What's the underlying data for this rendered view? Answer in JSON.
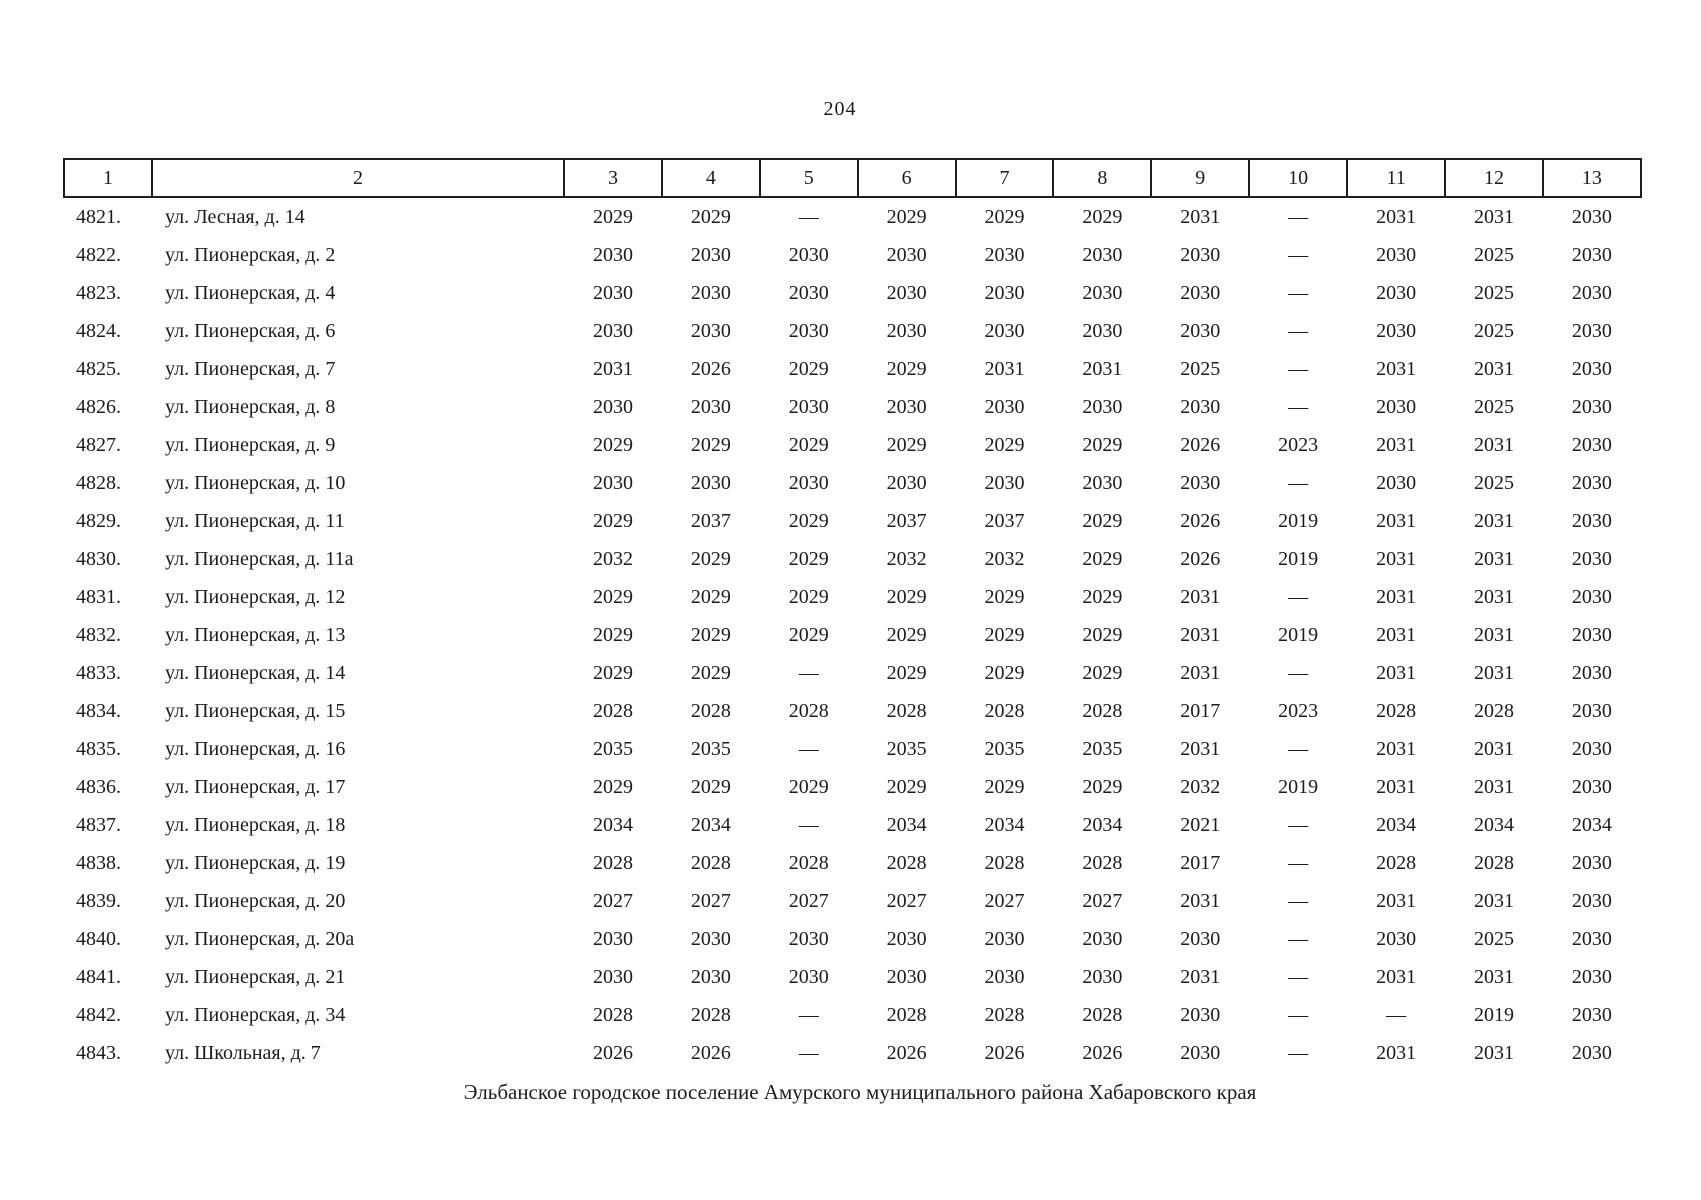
{
  "page": {
    "number": "204",
    "footer": "Эльбанское городское поселение Амурского муниципального района Хабаровского края"
  },
  "table": {
    "header": [
      "1",
      "2",
      "3",
      "4",
      "5",
      "6",
      "7",
      "8",
      "9",
      "10",
      "11",
      "12",
      "13"
    ],
    "rows": [
      {
        "num": "4821.",
        "address": "ул. Лесная, д. 14",
        "values": [
          "2029",
          "2029",
          "—",
          "2029",
          "2029",
          "2029",
          "2031",
          "—",
          "2031",
          "2031",
          "2030"
        ]
      },
      {
        "num": "4822.",
        "address": "ул. Пионерская, д. 2",
        "values": [
          "2030",
          "2030",
          "2030",
          "2030",
          "2030",
          "2030",
          "2030",
          "—",
          "2030",
          "2025",
          "2030"
        ]
      },
      {
        "num": "4823.",
        "address": "ул. Пионерская, д. 4",
        "values": [
          "2030",
          "2030",
          "2030",
          "2030",
          "2030",
          "2030",
          "2030",
          "—",
          "2030",
          "2025",
          "2030"
        ]
      },
      {
        "num": "4824.",
        "address": "ул. Пионерская, д. 6",
        "values": [
          "2030",
          "2030",
          "2030",
          "2030",
          "2030",
          "2030",
          "2030",
          "—",
          "2030",
          "2025",
          "2030"
        ]
      },
      {
        "num": "4825.",
        "address": "ул. Пионерская, д. 7",
        "values": [
          "2031",
          "2026",
          "2029",
          "2029",
          "2031",
          "2031",
          "2025",
          "—",
          "2031",
          "2031",
          "2030"
        ]
      },
      {
        "num": "4826.",
        "address": "ул. Пионерская, д. 8",
        "values": [
          "2030",
          "2030",
          "2030",
          "2030",
          "2030",
          "2030",
          "2030",
          "—",
          "2030",
          "2025",
          "2030"
        ]
      },
      {
        "num": "4827.",
        "address": "ул. Пионерская, д. 9",
        "values": [
          "2029",
          "2029",
          "2029",
          "2029",
          "2029",
          "2029",
          "2026",
          "2023",
          "2031",
          "2031",
          "2030"
        ]
      },
      {
        "num": "4828.",
        "address": "ул. Пионерская, д. 10",
        "values": [
          "2030",
          "2030",
          "2030",
          "2030",
          "2030",
          "2030",
          "2030",
          "—",
          "2030",
          "2025",
          "2030"
        ]
      },
      {
        "num": "4829.",
        "address": "ул. Пионерская, д. 11",
        "values": [
          "2029",
          "2037",
          "2029",
          "2037",
          "2037",
          "2029",
          "2026",
          "2019",
          "2031",
          "2031",
          "2030"
        ]
      },
      {
        "num": "4830.",
        "address": "ул. Пионерская, д. 11а",
        "values": [
          "2032",
          "2029",
          "2029",
          "2032",
          "2032",
          "2029",
          "2026",
          "2019",
          "2031",
          "2031",
          "2030"
        ]
      },
      {
        "num": "4831.",
        "address": "ул. Пионерская, д. 12",
        "values": [
          "2029",
          "2029",
          "2029",
          "2029",
          "2029",
          "2029",
          "2031",
          "—",
          "2031",
          "2031",
          "2030"
        ]
      },
      {
        "num": "4832.",
        "address": "ул. Пионерская, д. 13",
        "values": [
          "2029",
          "2029",
          "2029",
          "2029",
          "2029",
          "2029",
          "2031",
          "2019",
          "2031",
          "2031",
          "2030"
        ]
      },
      {
        "num": "4833.",
        "address": "ул. Пионерская, д. 14",
        "values": [
          "2029",
          "2029",
          "—",
          "2029",
          "2029",
          "2029",
          "2031",
          "—",
          "2031",
          "2031",
          "2030"
        ]
      },
      {
        "num": "4834.",
        "address": "ул. Пионерская, д. 15",
        "values": [
          "2028",
          "2028",
          "2028",
          "2028",
          "2028",
          "2028",
          "2017",
          "2023",
          "2028",
          "2028",
          "2030"
        ]
      },
      {
        "num": "4835.",
        "address": "ул. Пионерская, д. 16",
        "values": [
          "2035",
          "2035",
          "—",
          "2035",
          "2035",
          "2035",
          "2031",
          "—",
          "2031",
          "2031",
          "2030"
        ]
      },
      {
        "num": "4836.",
        "address": "ул. Пионерская, д. 17",
        "values": [
          "2029",
          "2029",
          "2029",
          "2029",
          "2029",
          "2029",
          "2032",
          "2019",
          "2031",
          "2031",
          "2030"
        ]
      },
      {
        "num": "4837.",
        "address": "ул. Пионерская, д. 18",
        "values": [
          "2034",
          "2034",
          "—",
          "2034",
          "2034",
          "2034",
          "2021",
          "—",
          "2034",
          "2034",
          "2034"
        ]
      },
      {
        "num": "4838.",
        "address": "ул. Пионерская, д. 19",
        "values": [
          "2028",
          "2028",
          "2028",
          "2028",
          "2028",
          "2028",
          "2017",
          "—",
          "2028",
          "2028",
          "2030"
        ]
      },
      {
        "num": "4839.",
        "address": "ул. Пионерская, д. 20",
        "values": [
          "2027",
          "2027",
          "2027",
          "2027",
          "2027",
          "2027",
          "2031",
          "—",
          "2031",
          "2031",
          "2030"
        ]
      },
      {
        "num": "4840.",
        "address": "ул. Пионерская, д. 20а",
        "values": [
          "2030",
          "2030",
          "2030",
          "2030",
          "2030",
          "2030",
          "2030",
          "—",
          "2030",
          "2025",
          "2030"
        ]
      },
      {
        "num": "4841.",
        "address": "ул. Пионерская, д. 21",
        "values": [
          "2030",
          "2030",
          "2030",
          "2030",
          "2030",
          "2030",
          "2031",
          "—",
          "2031",
          "2031",
          "2030"
        ]
      },
      {
        "num": "4842.",
        "address": "ул. Пионерская, д. 34",
        "values": [
          "2028",
          "2028",
          "—",
          "2028",
          "2028",
          "2028",
          "2030",
          "—",
          "—",
          "2019",
          "2030"
        ]
      },
      {
        "num": "4843.",
        "address": "ул. Школьная, д. 7",
        "values": [
          "2026",
          "2026",
          "—",
          "2026",
          "2026",
          "2026",
          "2030",
          "—",
          "2031",
          "2031",
          "2030"
        ]
      }
    ]
  }
}
